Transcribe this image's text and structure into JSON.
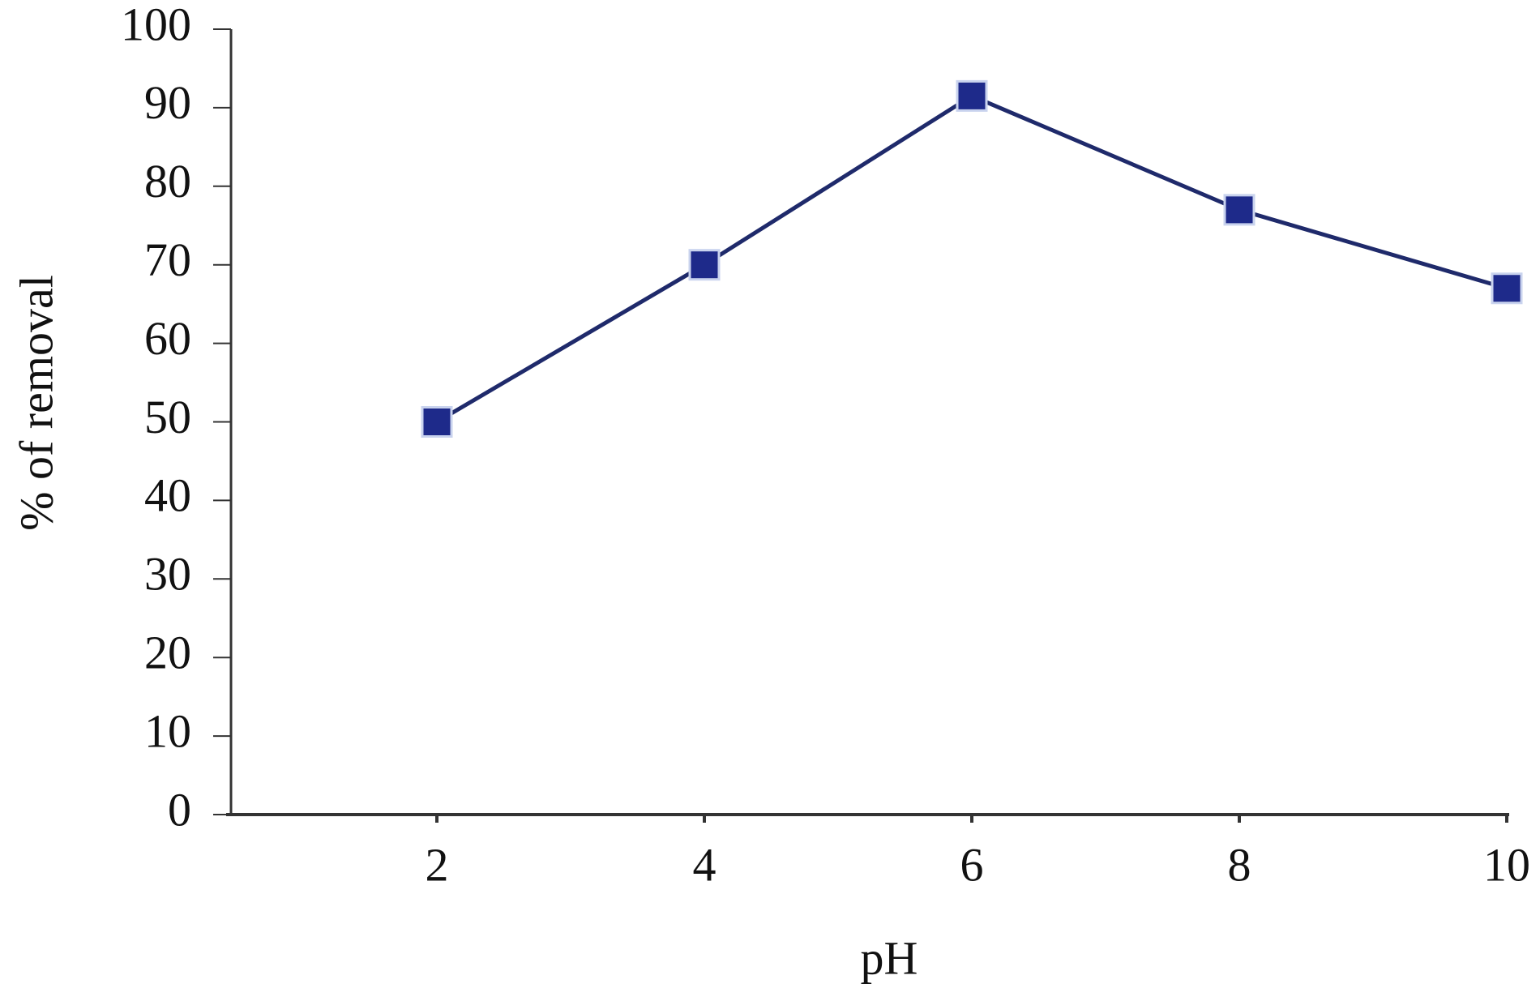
{
  "chart_data": {
    "type": "line",
    "x_label": "pH",
    "y_label": "% of removal",
    "categories": [
      "2",
      "4",
      "6",
      "8",
      "10"
    ],
    "series": [
      {
        "color": "#1f2a6b",
        "marker_color": "#1e2a8a",
        "values": [
          50,
          70,
          91.5,
          77,
          67
        ]
      }
    ],
    "ylim": [
      0,
      100
    ],
    "yticks": [
      0,
      10,
      20,
      30,
      40,
      50,
      60,
      70,
      80,
      90,
      100
    ],
    "grid": false
  }
}
